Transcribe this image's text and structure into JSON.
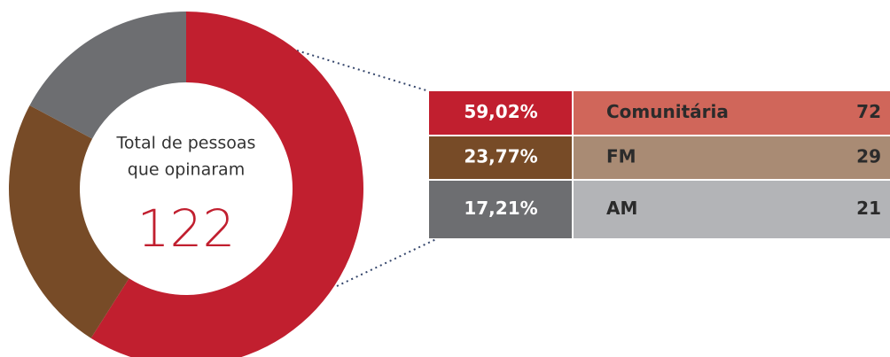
{
  "chart_data": {
    "type": "donut",
    "center_label": [
      "Total de pessoas",
      "que opinaram"
    ],
    "total": 122,
    "categories": [
      "Comunitária",
      "FM",
      "AM"
    ],
    "values": [
      59.02,
      23.77,
      17.21
    ],
    "value_labels": [
      "59,02%",
      "23,77%",
      "17,21%"
    ],
    "counts": [
      72,
      29,
      21
    ],
    "colors": [
      "#c11f2f",
      "#774b27",
      "#6d6e71"
    ],
    "row_colors": [
      "#d0665a",
      "#a98b74",
      "#b3b4b7"
    ]
  }
}
